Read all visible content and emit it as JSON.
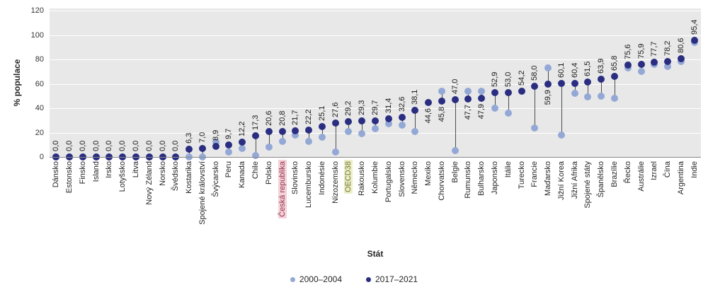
{
  "chart_data": {
    "type": "scatter",
    "subtype": "dumbbell",
    "title": "",
    "xlabel": "Stát",
    "ylabel": "% populace",
    "ylim": [
      0,
      120
    ],
    "yticks": [
      0,
      20,
      40,
      60,
      80,
      100,
      120
    ],
    "grid": "horizontal-white-on-gray",
    "legend_position": "bottom-center",
    "series_names": [
      "2000–2004",
      "2017–2021"
    ],
    "colors": {
      "series_2000_2004": "#94A8D6",
      "series_2017_2021": "#2B2E80",
      "connector": "#4D4D4D",
      "plot_background": "#E8E8E8",
      "gridline": "#FFFFFF",
      "highlight_cz_bg": "#F4D2DB",
      "highlight_cz_text": "#97344A",
      "highlight_oecd_bg": "#EBEFC9",
      "highlight_oecd_text": "#76762F"
    },
    "value_labels_refer_to": "2017–2021",
    "points": [
      {
        "name": "Dánsko",
        "label": "0,0",
        "v2017": 0.0,
        "v2000": 0
      },
      {
        "name": "Estonsko",
        "label": "0,0",
        "v2017": 0.0,
        "v2000": 0
      },
      {
        "name": "Finsko",
        "label": "0,0",
        "v2017": 0.0,
        "v2000": 0
      },
      {
        "name": "Island",
        "label": "0,0",
        "v2017": 0.0,
        "v2000": 0
      },
      {
        "name": "Irsko",
        "label": "0,0",
        "v2017": 0.0,
        "v2000": 0
      },
      {
        "name": "Lotyšsko",
        "label": "0,0",
        "v2017": 0.0,
        "v2000": 0
      },
      {
        "name": "Litva",
        "label": "0,0",
        "v2017": 0.0,
        "v2000": 0
      },
      {
        "name": "Nový Zéland",
        "label": "0,0",
        "v2017": 0.0,
        "v2000": 0
      },
      {
        "name": "Norsko",
        "label": "0,0",
        "v2017": 0.0,
        "v2000": 0
      },
      {
        "name": "Švédsko",
        "label": "0,0",
        "v2017": 0.0,
        "v2000": 0
      },
      {
        "name": "Kostarika",
        "label": "6,3",
        "v2017": 6.3,
        "v2000": 0
      },
      {
        "name": "Spojené království",
        "label": "7,0",
        "v2017": 7.0,
        "v2000": 0
      },
      {
        "name": "Švýcarsko",
        "label": "8,9",
        "v2017": 8.9,
        "v2000": 12
      },
      {
        "name": "Peru",
        "label": "9,7",
        "v2017": 9.7,
        "v2000": 4
      },
      {
        "name": "Kanada",
        "label": "12,2",
        "v2017": 12.2,
        "v2000": 7
      },
      {
        "name": "Chile",
        "label": "17,3",
        "v2017": 17.3,
        "v2000": 1
      },
      {
        "name": "Polsko",
        "label": "20,6",
        "v2017": 20.6,
        "v2000": 8
      },
      {
        "name": "Česká republika",
        "label": "20,8",
        "v2017": 20.8,
        "v2000": 13,
        "highlight": "cz"
      },
      {
        "name": "Slovinsko",
        "label": "21,7",
        "v2017": 21.7,
        "v2000": 18
      },
      {
        "name": "Lucembursko",
        "label": "22,2",
        "v2017": 22.2,
        "v2000": 13
      },
      {
        "name": "Indonésie",
        "label": "25,1",
        "v2017": 25.1,
        "v2000": 16
      },
      {
        "name": "Nizozemsko",
        "label": "27,6",
        "v2017": 27.6,
        "v2000": 4
      },
      {
        "name": "OECD38",
        "label": "29,2",
        "v2017": 29.2,
        "v2000": 21,
        "highlight": "oecd"
      },
      {
        "name": "Rakousko",
        "label": "29,3",
        "v2017": 29.3,
        "v2000": 19
      },
      {
        "name": "Kolumbie",
        "label": "29,7",
        "v2017": 29.7,
        "v2000": 23
      },
      {
        "name": "Portugalsko",
        "label": "31,4",
        "v2017": 31.4,
        "v2000": 27
      },
      {
        "name": "Slovensko",
        "label": "32,6",
        "v2017": 32.6,
        "v2000": 26
      },
      {
        "name": "Německo",
        "label": "38,1",
        "v2017": 38.1,
        "v2000": 21
      },
      {
        "name": "Mexiko",
        "label": "44,6",
        "v2017": 44.6,
        "v2000": null,
        "below": true
      },
      {
        "name": "Chorvatsko",
        "label": "45,8",
        "v2017": 45.8,
        "v2000": 54,
        "below": true
      },
      {
        "name": "Belgie",
        "label": "47,0",
        "v2017": 47.0,
        "v2000": 5
      },
      {
        "name": "Rumunsko",
        "label": "47,7",
        "v2017": 47.7,
        "v2000": 54,
        "below": true
      },
      {
        "name": "Bulharsko",
        "label": "47,9",
        "v2017": 47.9,
        "v2000": 54,
        "below": true
      },
      {
        "name": "Japonsko",
        "label": "52,9",
        "v2017": 52.9,
        "v2000": 40
      },
      {
        "name": "Itálie",
        "label": "53,0",
        "v2017": 53.0,
        "v2000": 36
      },
      {
        "name": "Turecko",
        "label": "54,2",
        "v2017": 54.2,
        "v2000": null
      },
      {
        "name": "Francie",
        "label": "58,0",
        "v2017": 58.0,
        "v2000": 24
      },
      {
        "name": "Maďarsko",
        "label": "59,9",
        "v2017": 59.9,
        "v2000": 73,
        "below": true
      },
      {
        "name": "Jižní Korea",
        "label": "60,1",
        "v2017": 60.1,
        "v2000": 18
      },
      {
        "name": "Jižní Afrika",
        "label": "60,4",
        "v2017": 60.4,
        "v2000": 52
      },
      {
        "name": "Spojené státy",
        "label": "61,5",
        "v2017": 61.5,
        "v2000": 49
      },
      {
        "name": "Španělsko",
        "label": "63,9",
        "v2017": 63.9,
        "v2000": 50
      },
      {
        "name": "Brazílie",
        "label": "65,8",
        "v2017": 65.8,
        "v2000": 48
      },
      {
        "name": "Řecko",
        "label": "75,6",
        "v2017": 75.6,
        "v2000": 73
      },
      {
        "name": "Austrálie",
        "label": "75,9",
        "v2017": 75.9,
        "v2000": 70
      },
      {
        "name": "Izrael",
        "label": "77,7",
        "v2017": 77.7,
        "v2000": 76
      },
      {
        "name": "Čína",
        "label": "78,2",
        "v2017": 78.2,
        "v2000": 74
      },
      {
        "name": "Argentina",
        "label": "80,6",
        "v2017": 80.6,
        "v2000": 78
      },
      {
        "name": "Indie",
        "label": "95,4",
        "v2017": 95.4,
        "v2000": 94
      }
    ]
  },
  "legend": {
    "item_2000": "2000–2004",
    "item_2017": "2017–2021"
  },
  "axes": {
    "y_title": "% populace",
    "x_title": "Stát"
  }
}
